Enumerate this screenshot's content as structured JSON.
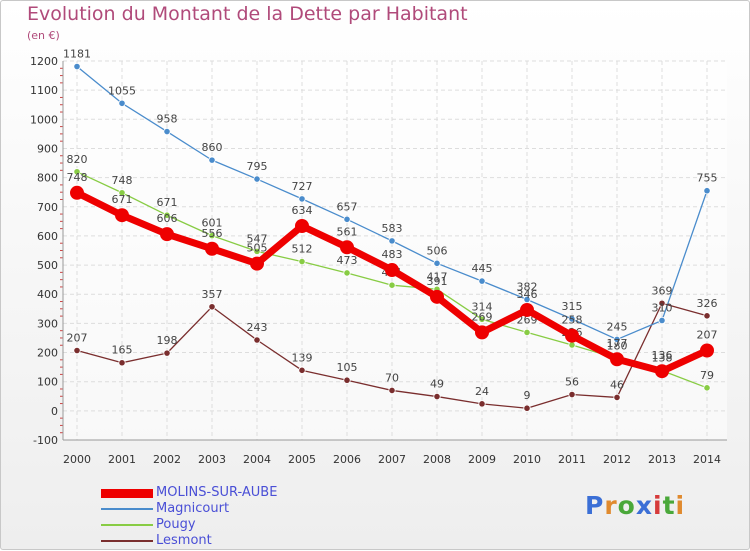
{
  "title": "Evolution du Montant de la Dette par Habitant",
  "unit": "(en €)",
  "brand": {
    "text": "Proxiti",
    "colors": [
      "#3b6fd6",
      "#e08a2e",
      "#4aa83a",
      "#3b6fd6",
      "#d63b3b",
      "#4aa83a",
      "#e08a2e"
    ]
  },
  "chart_data": {
    "type": "line",
    "x": [
      2000,
      2001,
      2002,
      2003,
      2004,
      2005,
      2006,
      2007,
      2008,
      2009,
      2010,
      2011,
      2012,
      2013,
      2014
    ],
    "ylim": [
      -100,
      1200
    ],
    "yticks": [
      -100,
      0,
      100,
      200,
      300,
      400,
      500,
      600,
      700,
      800,
      900,
      1000,
      1100,
      1200
    ],
    "grid": true,
    "legend": "bottom-left",
    "series": [
      {
        "name": "MOLINS-SUR-AUBE",
        "color": "#ee0000",
        "values": [
          748,
          671,
          606,
          556,
          505,
          634,
          561,
          483,
          391,
          269,
          346,
          258,
          177,
          136,
          207
        ]
      },
      {
        "name": "Magnicourt",
        "color": "#4a8ccc",
        "values": [
          1181,
          1055,
          958,
          860,
          795,
          727,
          657,
          583,
          506,
          445,
          382,
          315,
          245,
          310,
          755
        ]
      },
      {
        "name": "Pougy",
        "color": "#88cc44",
        "values": [
          820,
          748,
          671,
          601,
          547,
          512,
          473,
          431,
          417,
          314,
          269,
          226,
          180,
          138,
          79
        ]
      },
      {
        "name": "Lesmont",
        "color": "#7a2e2e",
        "values": [
          207,
          165,
          198,
          357,
          243,
          139,
          105,
          70,
          49,
          24,
          9,
          56,
          46,
          369,
          326
        ]
      }
    ]
  }
}
